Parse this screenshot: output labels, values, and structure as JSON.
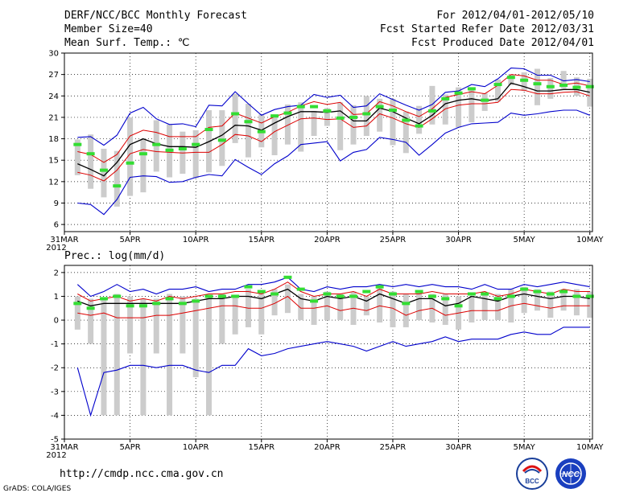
{
  "header": {
    "title": "DERF/NCC/BCC Monthly Forecast",
    "member_size": "Member Size=40",
    "variable": "Mean Surf. Temp.: ℃",
    "forecast_period": "For 2012/04/01-2012/05/10",
    "started_date": "Fcst Started Refer Date 2012/03/31",
    "produced_date": "Fcst Produced Date 2012/04/01"
  },
  "footer": {
    "url": "http://cmdp.ncc.cma.gov.cn",
    "credit": "GrADS: COLA/IGES",
    "logo_bcc": "BCC",
    "logo_ncc": "NCC"
  },
  "colors": {
    "envelope": "#0000cc",
    "spread": "#dd0000",
    "mean": "#000000",
    "marker": "#33dd33",
    "bar": "#cccccc"
  },
  "chart_data": [
    {
      "type": "line",
      "title": "Mean Surf. Temp.: ℃",
      "ylim": [
        5,
        30
      ],
      "yticks": [
        6,
        9,
        12,
        15,
        18,
        21,
        24,
        27,
        30
      ],
      "x_ticks": [
        {
          "day": 0,
          "label": "31MAR"
        },
        {
          "day": 5,
          "label": "5APR"
        },
        {
          "day": 10,
          "label": "10APR"
        },
        {
          "day": 15,
          "label": "15APR"
        },
        {
          "day": 20,
          "label": "20APR"
        },
        {
          "day": 25,
          "label": "25APR"
        },
        {
          "day": 30,
          "label": "30APR"
        },
        {
          "day": 35,
          "label": "5MAY"
        },
        {
          "day": 40,
          "label": "10MAY"
        }
      ],
      "year_label": "2012",
      "days": [
        1,
        2,
        3,
        4,
        5,
        6,
        7,
        8,
        9,
        10,
        11,
        12,
        13,
        14,
        15,
        16,
        17,
        18,
        19,
        20,
        21,
        22,
        23,
        24,
        25,
        26,
        27,
        28,
        29,
        30,
        31,
        32,
        33,
        34,
        35,
        36,
        37,
        38,
        39,
        40
      ],
      "series": [
        {
          "name": "max",
          "values": [
            18.2,
            18.3,
            17.1,
            18.5,
            21.6,
            22.4,
            20.8,
            20.0,
            20.1,
            19.7,
            22.7,
            22.6,
            24.6,
            22.9,
            21.3,
            22.1,
            22.5,
            22.7,
            24.2,
            23.8,
            24.1,
            22.4,
            22.6,
            24.3,
            23.5,
            22.7,
            22.0,
            22.8,
            24.5,
            24.7,
            25.6,
            25.3,
            26.4,
            27.9,
            27.8,
            26.9,
            26.9,
            26.1,
            26.3,
            26.0
          ]
        },
        {
          "name": "upper",
          "values": [
            16.2,
            15.8,
            14.7,
            15.8,
            18.4,
            19.2,
            18.9,
            18.3,
            18.3,
            18.3,
            19.6,
            19.8,
            21.6,
            20.9,
            20.2,
            21.1,
            21.7,
            22.6,
            23.2,
            22.8,
            23.1,
            21.4,
            21.5,
            23.2,
            22.6,
            21.8,
            21.1,
            22.2,
            23.8,
            24.2,
            24.6,
            24.3,
            25.5,
            27.0,
            26.8,
            26.2,
            26.2,
            25.6,
            25.8,
            25.4
          ]
        },
        {
          "name": "mean",
          "values": [
            14.5,
            13.7,
            12.8,
            14.7,
            17.2,
            18.0,
            17.3,
            16.9,
            16.9,
            16.8,
            17.6,
            18.5,
            19.9,
            19.8,
            19.2,
            20.2,
            21.1,
            21.8,
            21.8,
            21.7,
            21.9,
            20.5,
            20.5,
            22.3,
            21.8,
            20.9,
            20.1,
            21.3,
            22.9,
            23.4,
            23.6,
            23.3,
            23.6,
            25.8,
            25.3,
            24.7,
            24.7,
            24.9,
            24.9,
            24.5
          ]
        },
        {
          "name": "lower",
          "values": [
            13.3,
            12.9,
            12.1,
            13.6,
            15.9,
            16.5,
            16.2,
            16.1,
            16.0,
            16.1,
            16.1,
            17.2,
            18.6,
            18.4,
            17.6,
            19.0,
            19.9,
            20.8,
            20.9,
            20.7,
            20.8,
            19.6,
            19.8,
            21.5,
            20.9,
            20.1,
            19.6,
            20.8,
            22.2,
            22.7,
            22.9,
            22.9,
            23.1,
            24.9,
            24.8,
            24.3,
            24.3,
            24.5,
            24.6,
            24.0
          ]
        },
        {
          "name": "min",
          "values": [
            9.0,
            8.8,
            7.4,
            9.5,
            12.6,
            12.8,
            12.7,
            11.9,
            12.0,
            12.6,
            13.0,
            12.8,
            15.1,
            14.0,
            13.0,
            14.5,
            15.6,
            17.2,
            17.4,
            17.6,
            14.9,
            16.1,
            16.5,
            18.2,
            17.9,
            17.5,
            15.7,
            17.2,
            18.8,
            19.6,
            20.1,
            20.2,
            20.3,
            21.6,
            21.3,
            21.5,
            21.8,
            22.0,
            22.0,
            21.3
          ]
        },
        {
          "name": "obs_marker",
          "values": [
            17.2,
            15.9,
            13.6,
            11.4,
            14.6,
            15.9,
            17.2,
            16.4,
            16.6,
            17.2,
            19.3,
            17.8,
            21.5,
            20.4,
            19.0,
            21.2,
            21.6,
            22.5,
            22.5,
            21.9,
            20.9,
            21.0,
            21.5,
            22.5,
            22.0,
            20.6,
            19.8,
            21.9,
            23.6,
            24.4,
            25.0,
            23.4,
            25.6,
            26.6,
            26.2,
            25.7,
            25.3,
            25.5,
            25.2,
            25.3
          ]
        }
      ],
      "bars": [
        [
          12.9,
          17.9
        ],
        [
          11.0,
          18.6
        ],
        [
          9.8,
          16.6
        ],
        [
          8.5,
          16.3
        ],
        [
          10.0,
          21.0
        ],
        [
          10.5,
          18.0
        ],
        [
          13.4,
          20.6
        ],
        [
          12.6,
          20.0
        ],
        [
          13.1,
          19.0
        ],
        [
          12.5,
          19.2
        ],
        [
          13.3,
          22.0
        ],
        [
          14.2,
          22.0
        ],
        [
          17.4,
          24.3
        ],
        [
          15.4,
          22.9
        ],
        [
          16.8,
          21.4
        ],
        [
          15.7,
          21.1
        ],
        [
          17.2,
          22.8
        ],
        [
          16.2,
          23.1
        ],
        [
          18.4,
          21.9
        ],
        [
          19.8,
          22.3
        ],
        [
          16.4,
          23.1
        ],
        [
          17.2,
          22.7
        ],
        [
          18.4,
          24.0
        ],
        [
          19.0,
          23.6
        ],
        [
          17.1,
          23.6
        ],
        [
          16.0,
          21.8
        ],
        [
          18.7,
          22.6
        ],
        [
          20.0,
          25.4
        ],
        [
          20.0,
          24.2
        ],
        [
          19.6,
          25.2
        ],
        [
          20.3,
          25.1
        ],
        [
          21.9,
          24.4
        ],
        [
          23.2,
          26.3
        ],
        [
          25.5,
          27.0
        ],
        [
          24.7,
          27.3
        ],
        [
          22.7,
          27.8
        ],
        [
          23.6,
          26.5
        ],
        [
          25.0,
          27.5
        ],
        [
          24.0,
          26.6
        ],
        [
          22.5,
          26.4
        ]
      ]
    },
    {
      "type": "line",
      "title": "Prec.: log(mm/d)",
      "ylim": [
        -5,
        2.3
      ],
      "yticks": [
        -5,
        -4,
        -3,
        -2,
        -1,
        0,
        1,
        2
      ],
      "x_ticks": [
        {
          "day": 0,
          "label": "31MAR"
        },
        {
          "day": 5,
          "label": "5APR"
        },
        {
          "day": 10,
          "label": "10APR"
        },
        {
          "day": 15,
          "label": "15APR"
        },
        {
          "day": 20,
          "label": "20APR"
        },
        {
          "day": 25,
          "label": "25APR"
        },
        {
          "day": 30,
          "label": "30APR"
        },
        {
          "day": 35,
          "label": "5MAY"
        },
        {
          "day": 40,
          "label": "10MAY"
        }
      ],
      "year_label": "2012",
      "days": [
        1,
        2,
        3,
        4,
        5,
        6,
        7,
        8,
        9,
        10,
        11,
        12,
        13,
        14,
        15,
        16,
        17,
        18,
        19,
        20,
        21,
        22,
        23,
        24,
        25,
        26,
        27,
        28,
        29,
        30,
        31,
        32,
        33,
        34,
        35,
        36,
        37,
        38,
        39,
        40
      ],
      "series": [
        {
          "name": "max",
          "values": [
            1.5,
            1.0,
            1.2,
            1.5,
            1.2,
            1.3,
            1.1,
            1.3,
            1.3,
            1.4,
            1.2,
            1.3,
            1.3,
            1.5,
            1.5,
            1.6,
            1.8,
            1.3,
            1.2,
            1.4,
            1.3,
            1.4,
            1.4,
            1.5,
            1.4,
            1.5,
            1.4,
            1.5,
            1.4,
            1.4,
            1.3,
            1.5,
            1.3,
            1.3,
            1.5,
            1.4,
            1.5,
            1.6,
            1.5,
            1.4
          ]
        },
        {
          "name": "upper",
          "values": [
            1.1,
            0.8,
            0.9,
            1.0,
            0.8,
            0.9,
            0.8,
            1.0,
            0.9,
            1.0,
            1.1,
            1.1,
            1.2,
            1.2,
            1.1,
            1.3,
            1.6,
            1.2,
            1.0,
            1.1,
            1.1,
            1.2,
            1.0,
            1.3,
            1.1,
            1.1,
            1.1,
            1.2,
            1.1,
            1.1,
            1.1,
            1.2,
            1.0,
            1.1,
            1.3,
            1.2,
            1.1,
            1.3,
            1.2,
            1.2
          ]
        },
        {
          "name": "mean",
          "values": [
            0.8,
            0.6,
            0.7,
            0.7,
            0.7,
            0.7,
            0.7,
            0.7,
            0.7,
            0.8,
            0.9,
            0.9,
            1.0,
            1.0,
            0.9,
            1.1,
            1.3,
            0.9,
            0.8,
            1.0,
            0.9,
            1.0,
            0.8,
            1.1,
            0.9,
            0.7,
            0.9,
            0.9,
            0.6,
            0.7,
            1.0,
            0.9,
            0.8,
            1.0,
            1.1,
            1.0,
            0.9,
            1.0,
            1.0,
            0.9
          ]
        },
        {
          "name": "lower",
          "values": [
            0.3,
            0.2,
            0.3,
            0.1,
            0.1,
            0.1,
            0.2,
            0.2,
            0.3,
            0.4,
            0.5,
            0.6,
            0.6,
            0.5,
            0.5,
            0.7,
            1.0,
            0.5,
            0.5,
            0.6,
            0.4,
            0.5,
            0.4,
            0.6,
            0.5,
            0.2,
            0.4,
            0.5,
            0.2,
            0.3,
            0.4,
            0.4,
            0.4,
            0.6,
            0.7,
            0.6,
            0.5,
            0.6,
            0.6,
            0.6
          ]
        },
        {
          "name": "min",
          "values": [
            -2.0,
            -4.0,
            -2.2,
            -2.1,
            -1.9,
            -1.9,
            -2.0,
            -1.9,
            -1.9,
            -2.1,
            -2.2,
            -1.9,
            -1.9,
            -1.2,
            -1.5,
            -1.4,
            -1.2,
            -1.1,
            -1.0,
            -0.9,
            -1.0,
            -1.1,
            -1.3,
            -1.1,
            -0.9,
            -1.1,
            -1.0,
            -0.9,
            -0.7,
            -0.9,
            -0.8,
            -0.8,
            -0.8,
            -0.6,
            -0.5,
            -0.6,
            -0.6,
            -0.3,
            -0.3,
            -0.3
          ]
        },
        {
          "name": "obs_marker",
          "values": [
            0.7,
            0.5,
            0.9,
            1.0,
            0.6,
            0.6,
            0.7,
            0.9,
            0.7,
            0.8,
            1.0,
            1.0,
            1.0,
            1.4,
            1.2,
            1.1,
            1.8,
            1.3,
            0.8,
            1.1,
            1.0,
            1.0,
            1.2,
            1.4,
            1.1,
            0.7,
            1.2,
            1.0,
            0.9,
            0.6,
            1.1,
            1.1,
            0.9,
            1.0,
            1.3,
            1.2,
            1.1,
            1.2,
            1.0,
            1.0
          ]
        }
      ],
      "bars": [
        [
          -0.4,
          1.0
        ],
        [
          -1.0,
          0.9
        ],
        [
          -4.0,
          0.9
        ],
        [
          -4.0,
          1.1
        ],
        [
          -1.4,
          1.0
        ],
        [
          -4.0,
          0.9
        ],
        [
          -1.4,
          0.9
        ],
        [
          -4.0,
          1.1
        ],
        [
          -1.4,
          1.0
        ],
        [
          -2.4,
          0.9
        ],
        [
          -4.0,
          1.0
        ],
        [
          -1.0,
          1.1
        ],
        [
          -0.6,
          1.0
        ],
        [
          -0.3,
          1.3
        ],
        [
          -0.6,
          1.2
        ],
        [
          0.2,
          1.3
        ],
        [
          0.3,
          1.5
        ],
        [
          0.0,
          1.1
        ],
        [
          -0.2,
          1.0
        ],
        [
          0.0,
          1.2
        ],
        [
          0.0,
          1.1
        ],
        [
          -0.2,
          1.2
        ],
        [
          0.2,
          1.0
        ],
        [
          -0.1,
          1.4
        ],
        [
          -0.3,
          1.2
        ],
        [
          -0.3,
          1.1
        ],
        [
          0.0,
          1.2
        ],
        [
          -0.1,
          1.1
        ],
        [
          -0.2,
          1.1
        ],
        [
          -0.4,
          1.0
        ],
        [
          -0.1,
          1.0
        ],
        [
          0.0,
          1.1
        ],
        [
          0.0,
          1.1
        ],
        [
          -0.1,
          1.3
        ],
        [
          0.3,
          1.4
        ],
        [
          0.4,
          1.3
        ],
        [
          0.1,
          1.2
        ],
        [
          0.4,
          1.3
        ],
        [
          0.2,
          1.3
        ],
        [
          0.1,
          1.2
        ]
      ]
    }
  ]
}
